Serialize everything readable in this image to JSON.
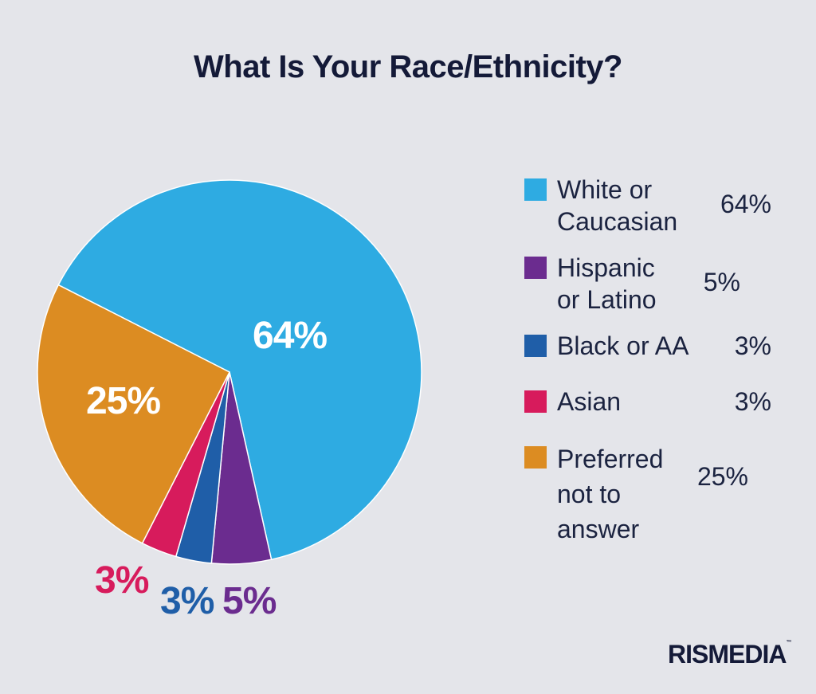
{
  "chart_data": {
    "type": "pie",
    "title": "What Is Your Race/Ethnicity?",
    "slices": [
      {
        "label": "White or Caucasian",
        "value": 64,
        "display": "64%",
        "color": "#2eabe2"
      },
      {
        "label": "Hispanic or Latino",
        "value": 5,
        "display": "5%",
        "color": "#6b2c8f"
      },
      {
        "label": "Black or AA",
        "value": 3,
        "display": "3%",
        "color": "#1f5ea8"
      },
      {
        "label": "Asian",
        "value": 3,
        "display": "3%",
        "color": "#d71b5c"
      },
      {
        "label": "Preferred not to answer",
        "value": 25,
        "display": "25%",
        "color": "#dc8c22"
      }
    ],
    "legend_position": "right"
  },
  "brand": {
    "logo": "RISMEDIA",
    "tm": "™"
  }
}
